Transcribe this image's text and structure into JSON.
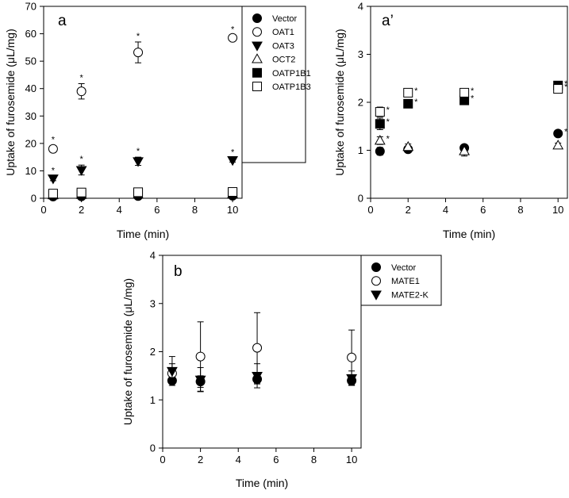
{
  "chart_data": [
    {
      "id": "a",
      "type": "scatter",
      "panel_label": "a",
      "xlabel": "Time (min)",
      "ylabel": "Uptake of furosemide (μL/mg)",
      "xlim": [
        0,
        10.5
      ],
      "ylim": [
        0,
        70
      ],
      "xticks": [
        0,
        2,
        4,
        6,
        8,
        10
      ],
      "yticks": [
        0,
        10,
        20,
        30,
        40,
        50,
        60,
        70
      ],
      "legend_position": "outside-right",
      "x": [
        0.5,
        2,
        5,
        10
      ],
      "series": [
        {
          "name": "Vector",
          "marker": "circle-filled",
          "values": [
            0.6,
            0.7,
            0.8,
            0.9
          ],
          "err": [
            0.2,
            0.2,
            0.2,
            0.2
          ],
          "stars": [
            false,
            false,
            false,
            false
          ]
        },
        {
          "name": "OAT1",
          "marker": "circle-open",
          "values": [
            18,
            39,
            53.2,
            58.5
          ],
          "err": [
            1.2,
            2.8,
            3.8,
            1.0
          ],
          "stars": [
            true,
            true,
            true,
            true
          ]
        },
        {
          "name": "OAT3",
          "marker": "triangle-down-filled",
          "values": [
            7.2,
            10.3,
            13.5,
            13.9
          ],
          "err": [
            0.8,
            1.8,
            1.5,
            0.7
          ],
          "stars": [
            true,
            true,
            true,
            true
          ]
        },
        {
          "name": "OCT2",
          "marker": "triangle-up-open",
          "values": [
            1.1,
            1.2,
            1.3,
            1.5
          ],
          "err": [
            0.2,
            0.2,
            0.2,
            0.2
          ],
          "stars": [
            false,
            false,
            false,
            false
          ]
        },
        {
          "name": "OATP1B1",
          "marker": "square-filled",
          "values": [
            1.4,
            1.6,
            1.8,
            2.0
          ],
          "err": [
            0.2,
            0.2,
            0.2,
            0.2
          ],
          "stars": [
            false,
            false,
            false,
            false
          ]
        },
        {
          "name": "OATP1B3",
          "marker": "square-open",
          "values": [
            1.7,
            2.1,
            2.2,
            2.3
          ],
          "err": [
            0.2,
            0.2,
            0.2,
            0.2
          ],
          "stars": [
            false,
            false,
            false,
            false
          ]
        }
      ]
    },
    {
      "id": "a-prime",
      "type": "scatter",
      "panel_label": "a’",
      "xlabel": "Time (min)",
      "ylabel": "Uptake of furosemide (μL/mg)",
      "xlim": [
        0,
        10.5
      ],
      "ylim": [
        0,
        4
      ],
      "xticks": [
        0,
        2,
        4,
        6,
        8,
        10
      ],
      "yticks": [
        0,
        1,
        2,
        3,
        4
      ],
      "x": [
        0.5,
        2,
        5,
        10
      ],
      "series": [
        {
          "name": "Vector",
          "marker": "circle-filled",
          "values": [
            0.98,
            1.02,
            1.05,
            1.35
          ],
          "err": [
            0.08,
            0.05,
            0.06,
            0.06
          ],
          "stars": [
            false,
            false,
            false,
            true
          ]
        },
        {
          "name": "OCT2",
          "marker": "triangle-up-open",
          "values": [
            1.2,
            1.07,
            0.98,
            1.1
          ],
          "err": [
            0.08,
            0.06,
            0.1,
            0.05
          ],
          "stars": [
            true,
            false,
            false,
            false
          ]
        },
        {
          "name": "OATP1B1",
          "marker": "square-filled",
          "values": [
            1.55,
            1.97,
            2.04,
            2.35
          ],
          "err": [
            0.12,
            0.04,
            0.05,
            0.05
          ],
          "stars": [
            true,
            true,
            true,
            true
          ]
        },
        {
          "name": "OATP1B3",
          "marker": "square-open",
          "values": [
            1.8,
            2.2,
            2.2,
            2.28
          ],
          "err": [
            0.1,
            0.04,
            0.04,
            0.05
          ],
          "stars": [
            true,
            true,
            true,
            true
          ]
        }
      ]
    },
    {
      "id": "b",
      "type": "scatter",
      "panel_label": "b",
      "xlabel": "Time (min)",
      "ylabel": "Uptake of furosemide (μL/mg)",
      "xlim": [
        0,
        10.5
      ],
      "ylim": [
        0,
        4
      ],
      "xticks": [
        0,
        2,
        4,
        6,
        8,
        10
      ],
      "yticks": [
        0,
        1,
        2,
        3,
        4
      ],
      "legend_position": "outside-right",
      "x": [
        0.5,
        2,
        5,
        10
      ],
      "series": [
        {
          "name": "Vector",
          "marker": "circle-filled",
          "values": [
            1.4,
            1.38,
            1.43,
            1.4
          ],
          "err": [
            0.1,
            0.12,
            0.1,
            0.1
          ],
          "stars": [
            false,
            false,
            false,
            false
          ]
        },
        {
          "name": "MATE1",
          "marker": "circle-open",
          "values": [
            1.55,
            1.9,
            2.08,
            1.88
          ],
          "err": [
            0.2,
            0.72,
            0.73,
            0.57
          ],
          "stars": [
            false,
            false,
            false,
            false
          ]
        },
        {
          "name": "MATE2-K",
          "marker": "triangle-down-filled",
          "values": [
            1.6,
            1.42,
            1.5,
            1.45
          ],
          "err": [
            0.3,
            0.25,
            0.25,
            0.15
          ],
          "stars": [
            false,
            false,
            false,
            false
          ]
        }
      ]
    }
  ]
}
